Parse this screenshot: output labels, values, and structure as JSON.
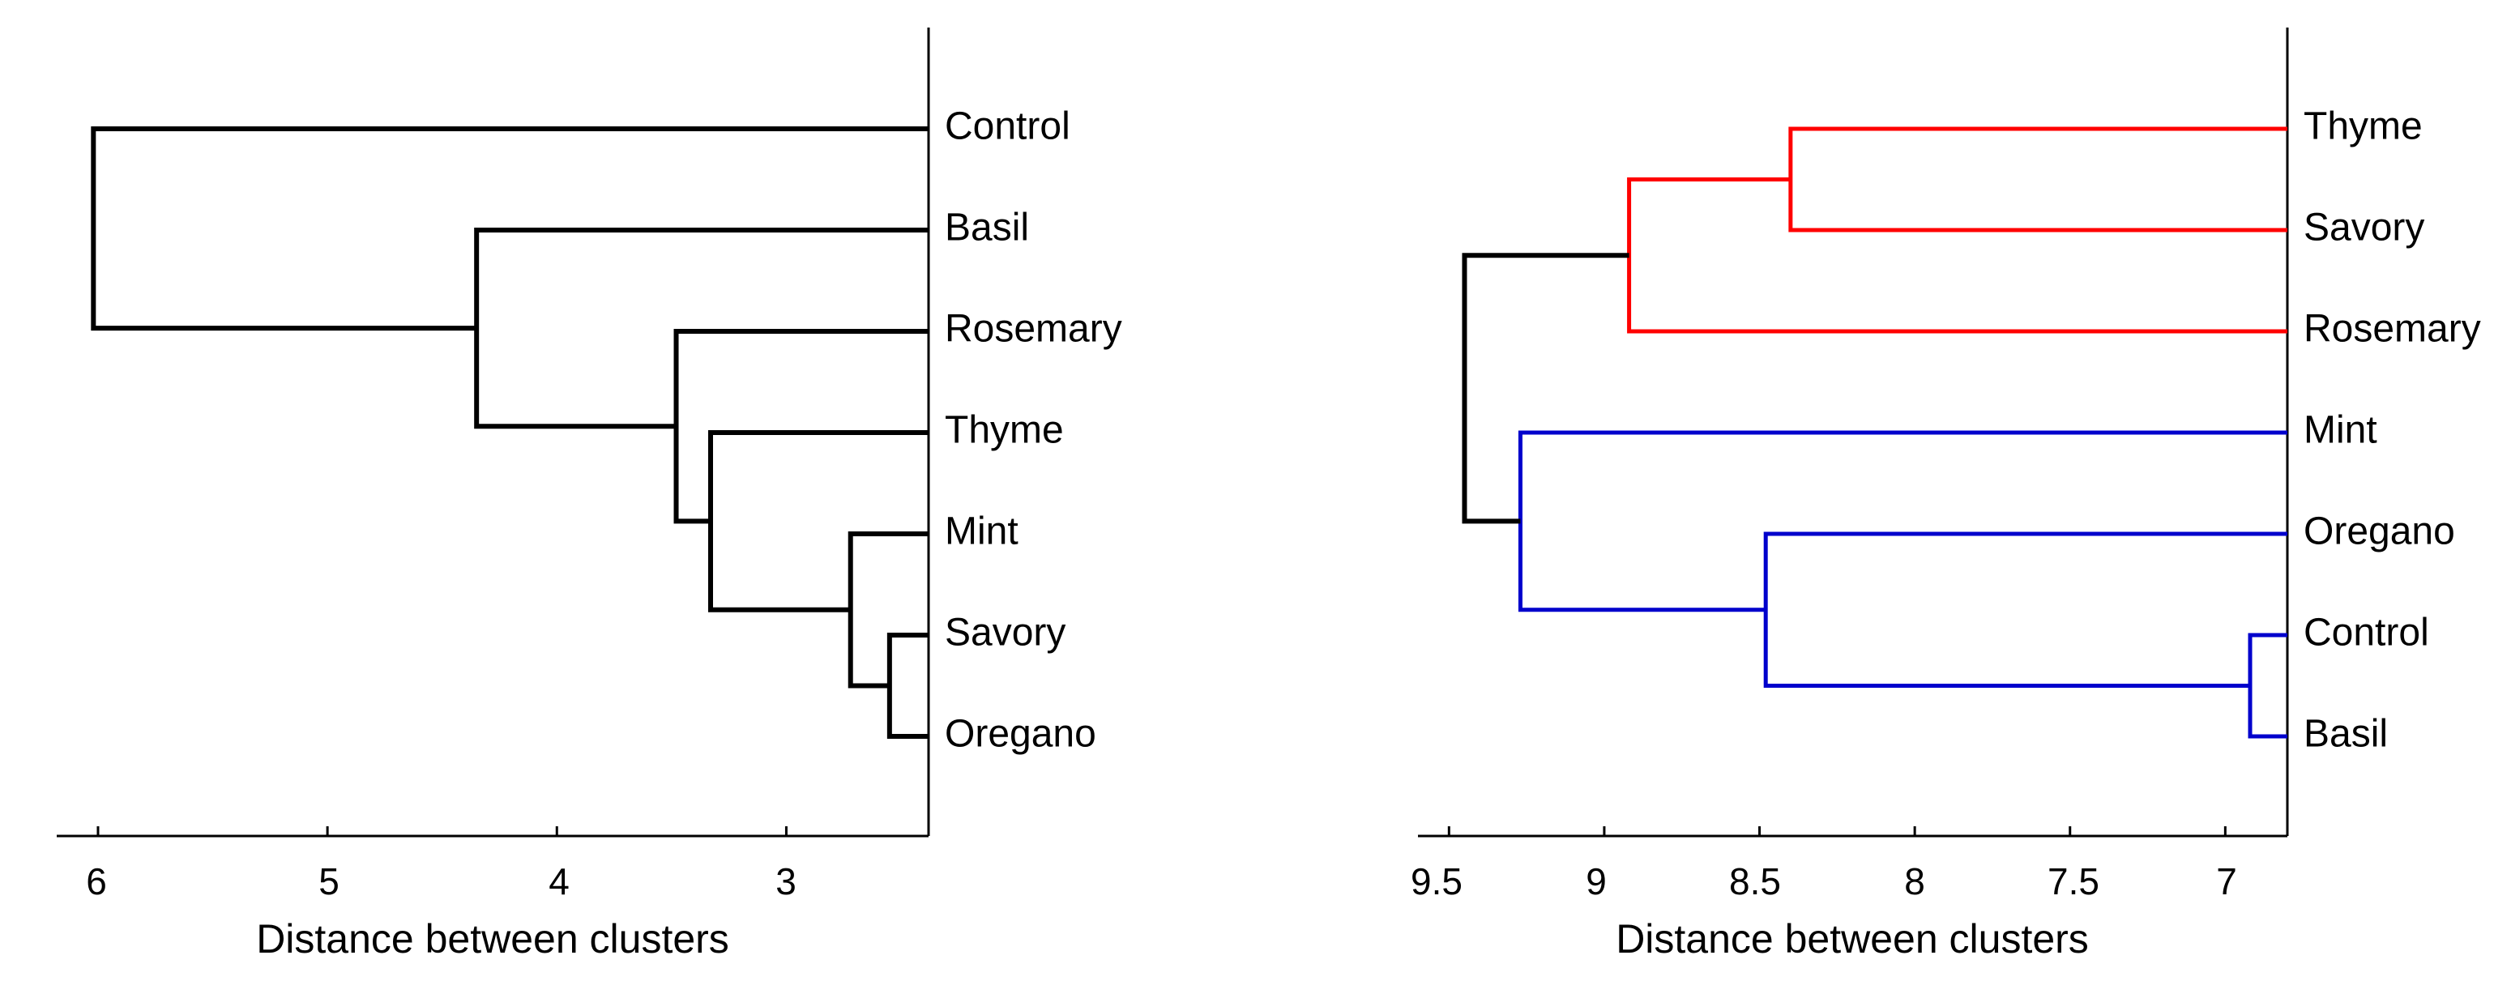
{
  "chart_data": [
    {
      "type": "dendrogram",
      "xlabel": "Distance between clusters",
      "xlim": [
        6.18,
        2.38
      ],
      "xticks": [
        "6",
        "5",
        "4",
        "3"
      ],
      "xtick_values": [
        6,
        5,
        4,
        3
      ],
      "leaves": [
        "Control",
        "Basil",
        "Rosemary",
        "Thyme",
        "Mint",
        "Savory",
        "Oregano"
      ],
      "merges": [
        {
          "left": "Savory",
          "right": "Oregano",
          "height": 2.55,
          "color": "#000000"
        },
        {
          "left": "Mint",
          "right": "Savory+Oregano",
          "height": 2.72,
          "color": "#000000"
        },
        {
          "left": "Thyme",
          "right": "Mint+Savory+Oregano",
          "height": 3.33,
          "color": "#000000"
        },
        {
          "left": "Rosemary",
          "right": "Thyme+Mint+Savory+Oregano",
          "height": 3.48,
          "color": "#000000"
        },
        {
          "left": "Basil",
          "right": "Rosemary+Thyme+Mint+Savory+Oregano",
          "height": 4.35,
          "color": "#000000"
        },
        {
          "left": "Control",
          "right": "all others",
          "height": 6.02,
          "color": "#000000"
        }
      ]
    },
    {
      "type": "dendrogram",
      "xlabel": "Distance between clusters",
      "xlim": [
        9.6,
        6.8
      ],
      "xticks": [
        "9.5",
        "9",
        "8.5",
        "8",
        "7.5",
        "7"
      ],
      "xtick_values": [
        9.5,
        9,
        8.5,
        8,
        7.5,
        7
      ],
      "leaves": [
        "Thyme",
        "Savory",
        "Rosemary",
        "Mint",
        "Oregano",
        "Control",
        "Basil"
      ],
      "merges": [
        {
          "left": "Thyme",
          "right": "Savory",
          "height": 8.4,
          "color": "#ff0000"
        },
        {
          "left": "Thyme+Savory",
          "right": "Rosemary",
          "height": 8.92,
          "color": "#ff0000"
        },
        {
          "left": "Control",
          "right": "Basil",
          "height": 6.92,
          "color": "#0000cc"
        },
        {
          "left": "Oregano",
          "right": "Control+Basil",
          "height": 8.48,
          "color": "#0000cc"
        },
        {
          "left": "Mint",
          "right": "Oregano+Control+Basil",
          "height": 9.27,
          "color": "#0000cc"
        },
        {
          "left": "red cluster",
          "right": "blue cluster",
          "height": 9.45,
          "color": "#000000"
        }
      ]
    }
  ]
}
